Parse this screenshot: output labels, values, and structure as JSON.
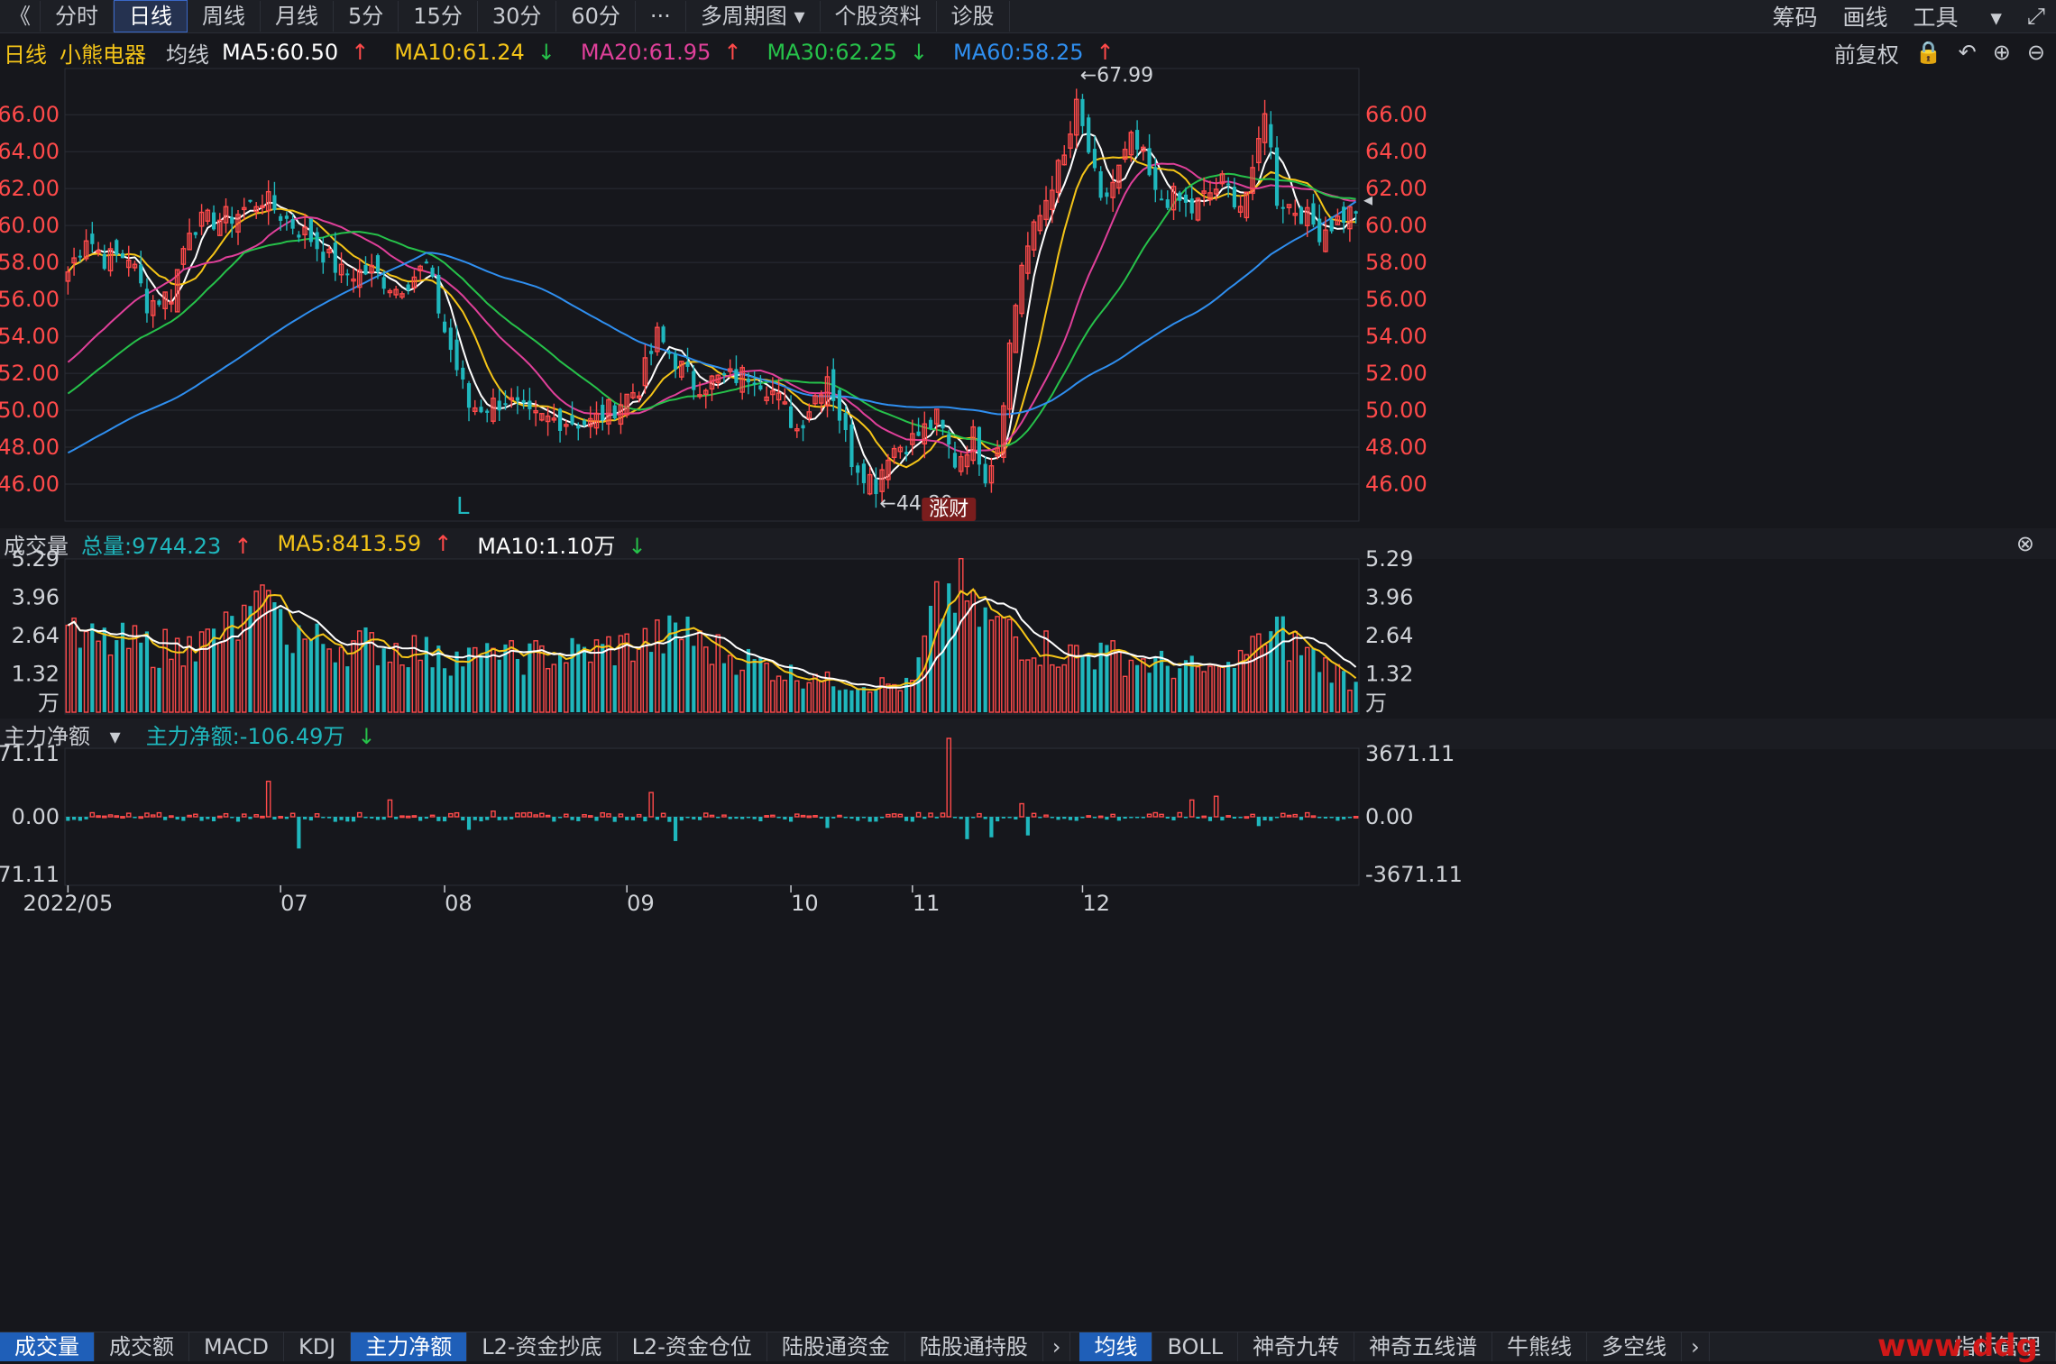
{
  "toolbar": {
    "back_icon": "chevron-left-icon",
    "tabs": [
      "分时",
      "日线",
      "周线",
      "月线",
      "5分",
      "15分",
      "30分",
      "60分",
      "···",
      "多周期图",
      "个股资料",
      "诊股"
    ],
    "active_tab": "日线",
    "right_items": [
      "筹码",
      "画线",
      "工具"
    ],
    "expand_icon": "fullscreen-icon"
  },
  "ma_bar": {
    "period": "日线",
    "stock": "小熊电器",
    "type": "均线",
    "ma5": "MA5:60.50",
    "ma10": "MA10:61.24",
    "ma20": "MA20:61.95",
    "ma30": "MA30:62.25",
    "ma60": "MA60:58.25",
    "restore": "前复权"
  },
  "volume_header": {
    "title": "成交量",
    "total": "总量:9744.23",
    "ma5": "MA5:8413.59",
    "ma10": "MA10:1.10万"
  },
  "flow_header": {
    "title": "主力净额",
    "value": "主力净额:-106.49万"
  },
  "colors": {
    "up": "#ff4a4a",
    "down": "#1fb7bd",
    "ma5": "#ffffff",
    "ma10": "#f5c518",
    "ma20": "#e0409a",
    "ma30": "#26c24a",
    "ma60": "#2f8ff0",
    "axis": "#ff4a4a",
    "bg": "#16171c"
  },
  "chart_data": [
    {
      "type": "candlestick",
      "title": "小熊电器 日线",
      "y_ticks": [
        "66.00",
        "64.00",
        "62.00",
        "60.00",
        "58.00",
        "56.00",
        "54.00",
        "52.00",
        "50.00",
        "48.00",
        "46.00"
      ],
      "ylim": [
        44.0,
        68.5
      ],
      "x_ticks": [
        "2022/05",
        "07",
        "08",
        "09",
        "10",
        "11",
        "12"
      ],
      "x_tick_index": [
        0,
        35,
        62,
        92,
        119,
        139,
        167
      ],
      "annotations": {
        "high": "←67.99",
        "low": "←44.80",
        "marker": "L",
        "badge": "涨财"
      },
      "series": [
        {
          "name": "MA5",
          "value": 60.5
        },
        {
          "name": "MA10",
          "value": 61.24
        },
        {
          "name": "MA20",
          "value": 61.95
        },
        {
          "name": "MA30",
          "value": 62.25
        },
        {
          "name": "MA60",
          "value": 58.25
        }
      ],
      "ma60_start": 47.7,
      "ma30_start": 50.9,
      "ma20_start": 52.6,
      "waypoints": [
        [
          0,
          57.5
        ],
        [
          3,
          59.5
        ],
        [
          6,
          58.2
        ],
        [
          10,
          58.4
        ],
        [
          13,
          55.8
        ],
        [
          17,
          56.3
        ],
        [
          20,
          60.0
        ],
        [
          27,
          60.5
        ],
        [
          32,
          61.5
        ],
        [
          36,
          60.3
        ],
        [
          40,
          59.3
        ],
        [
          45,
          57.4
        ],
        [
          50,
          57.5
        ],
        [
          54,
          56.6
        ],
        [
          59,
          57.8
        ],
        [
          62,
          54.3
        ],
        [
          66,
          50.2
        ],
        [
          69,
          50.2
        ],
        [
          72,
          50.6
        ],
        [
          76,
          49.5
        ],
        [
          81,
          49.5
        ],
        [
          86,
          49.3
        ],
        [
          90,
          50.2
        ],
        [
          94,
          51.3
        ],
        [
          97,
          54.0
        ],
        [
          103,
          51.4
        ],
        [
          108,
          51.7
        ],
        [
          113,
          52.0
        ],
        [
          116,
          51.0
        ],
        [
          120,
          49.0
        ],
        [
          123,
          50.8
        ],
        [
          125,
          52.0
        ],
        [
          129,
          47.4
        ],
        [
          133,
          46.0
        ],
        [
          135,
          47.8
        ],
        [
          139,
          48.4
        ],
        [
          143,
          49.5
        ],
        [
          146,
          47.2
        ],
        [
          149,
          48.6
        ],
        [
          151,
          46.6
        ],
        [
          153,
          48.2
        ],
        [
          155,
          53.5
        ],
        [
          157,
          58.0
        ],
        [
          160,
          60.5
        ],
        [
          162,
          62.4
        ],
        [
          164,
          63.6
        ],
        [
          166,
          66.3
        ],
        [
          168,
          64.0
        ],
        [
          170,
          61.0
        ],
        [
          173,
          63.0
        ],
        [
          175,
          64.5
        ],
        [
          177,
          63.6
        ],
        [
          179,
          61.5
        ],
        [
          182,
          61.5
        ],
        [
          185,
          60.8
        ],
        [
          187,
          61.5
        ],
        [
          190,
          62.3
        ],
        [
          193,
          61.2
        ],
        [
          195,
          62.5
        ],
        [
          197,
          66.5
        ],
        [
          199,
          61.5
        ],
        [
          203,
          60.7
        ],
        [
          206,
          59.7
        ],
        [
          210,
          60.5
        ],
        [
          212,
          60.9
        ]
      ],
      "candles": 213
    },
    {
      "type": "bar",
      "title": "成交量",
      "unit": "万",
      "y_ticks": [
        "5.29",
        "3.96",
        "2.64",
        "1.32",
        "万"
      ],
      "ylim": [
        0,
        5.29
      ],
      "series": [
        {
          "name": "总量",
          "value": 9744.23
        },
        {
          "name": "MA5",
          "value": 8413.59
        },
        {
          "name": "MA10",
          "value": 11000
        }
      ],
      "peaks": [
        [
          0,
          3.0
        ],
        [
          20,
          2.6
        ],
        [
          33,
          4.2
        ],
        [
          38,
          3.0
        ],
        [
          59,
          2.6
        ],
        [
          61,
          2.3
        ],
        [
          70,
          2.2
        ],
        [
          89,
          2.6
        ],
        [
          102,
          3.3
        ],
        [
          104,
          2.8
        ],
        [
          123,
          1.3
        ],
        [
          139,
          1.1
        ],
        [
          143,
          4.5
        ],
        [
          147,
          5.3
        ],
        [
          149,
          4.2
        ],
        [
          155,
          3.2
        ],
        [
          166,
          2.3
        ],
        [
          170,
          2.4
        ],
        [
          190,
          1.6
        ],
        [
          196,
          2.7
        ],
        [
          199,
          3.3
        ],
        [
          213,
          1.0
        ]
      ]
    },
    {
      "type": "bar",
      "title": "主力净额",
      "y_ticks": [
        "3671.11",
        "0.00",
        "-3671.11"
      ],
      "ylim": [
        -3671.11,
        3671.11
      ],
      "value": -106.49,
      "spikes": [
        [
          33,
          1900
        ],
        [
          38,
          -1700
        ],
        [
          53,
          900
        ],
        [
          66,
          -700
        ],
        [
          70,
          300
        ],
        [
          96,
          1300
        ],
        [
          100,
          -1300
        ],
        [
          125,
          -600
        ],
        [
          145,
          4200
        ],
        [
          148,
          -1200
        ],
        [
          152,
          -1100
        ],
        [
          157,
          700
        ],
        [
          158,
          -1000
        ],
        [
          185,
          900
        ],
        [
          189,
          1100
        ],
        [
          196,
          -500
        ]
      ]
    }
  ],
  "bottom_tabs": [
    "成交量",
    "成交额",
    "MACD",
    "KDJ",
    "主力净额",
    "L2-资金抄底",
    "L2-资金仓位",
    "陆股通资金",
    "陆股通持股",
    "神奇九转",
    "神奇五线谱",
    "牛熊线",
    "多空线"
  ],
  "bottom_tabs_active": "主力净额",
  "bottom_tabs_right": [
    "均线",
    "BOLL",
    "指标管理"
  ],
  "bottom_tabs_right_active": "均线",
  "watermark": "www.ddg"
}
